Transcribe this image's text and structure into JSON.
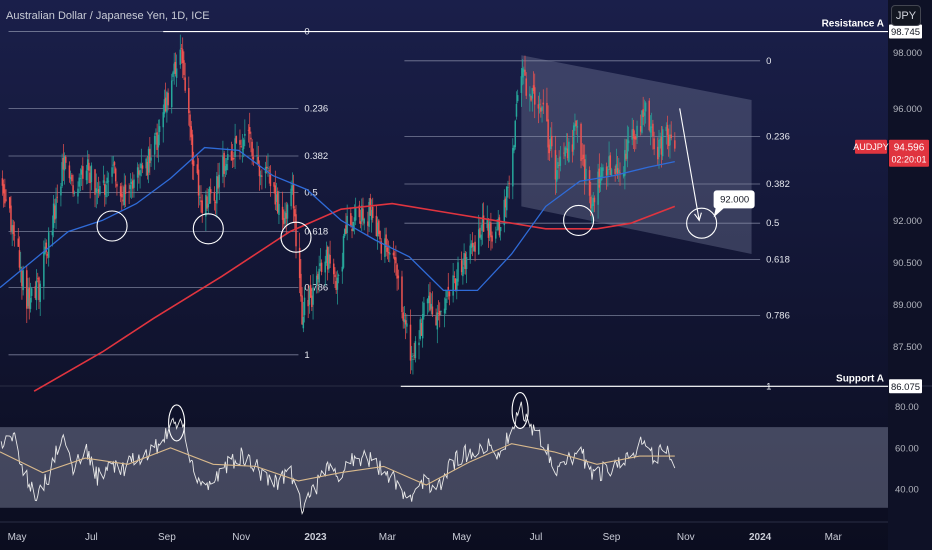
{
  "header": {
    "title": "Australian Dollar / Japanese Yen, 1D, ICE",
    "currency_button": "JPY"
  },
  "colors": {
    "background_top": "#1a1f4a",
    "background_bottom": "#0b0d1f",
    "candle_up": "#26a69a",
    "candle_down": "#ef5350",
    "ma_fast": "#2f6bd8",
    "ma_slow": "#e0343f",
    "price_tag": "#e0343f",
    "rsi_line": "#e8e8e8",
    "rsi_ma": "#d9b98c",
    "level_line": "#ffffff",
    "channel_fill": "#9aa3c0"
  },
  "chart_data": [
    {
      "type": "candlestick",
      "symbol": "AUDJPY",
      "ylim": [
        86.3,
        98.8
      ],
      "y_ticks": [
        98.0,
        96.0,
        92.0,
        90.5,
        89.0,
        87.5
      ],
      "y_tick_labels": [
        "98.000",
        "96.000",
        "92.000",
        "90.500",
        "89.000",
        "87.500"
      ],
      "x_ticks": [
        "May",
        "Jul",
        "Sep",
        "Nov",
        "2023",
        "Mar",
        "May",
        "Jul",
        "Sep",
        "Nov",
        "2024",
        "Mar"
      ],
      "x_tick_dates": [
        "2022-05-01",
        "2022-07-01",
        "2022-09-01",
        "2022-11-01",
        "2023-01-01",
        "2023-03-01",
        "2023-05-01",
        "2023-07-01",
        "2023-09-01",
        "2023-11-01",
        "2024-01-01",
        "2024-03-01"
      ],
      "x_range": [
        "2022-04-17",
        "2024-04-15"
      ],
      "last_price": {
        "symbol_label": "AUDJPY",
        "value": "94.596",
        "countdown": "02:20:01"
      },
      "close_series": [
        {
          "date": "2022-04-19",
          "close": 93.4
        },
        {
          "date": "2022-04-29",
          "close": 91.4
        },
        {
          "date": "2022-05-09",
          "close": 89.2
        },
        {
          "date": "2022-05-19",
          "close": 89.6
        },
        {
          "date": "2022-05-30",
          "close": 92.0
        },
        {
          "date": "2022-06-09",
          "close": 94.2
        },
        {
          "date": "2022-06-17",
          "close": 92.6
        },
        {
          "date": "2022-06-27",
          "close": 94.2
        },
        {
          "date": "2022-07-06",
          "close": 92.9
        },
        {
          "date": "2022-07-18",
          "close": 93.7
        },
        {
          "date": "2022-07-28",
          "close": 93.0
        },
        {
          "date": "2022-08-05",
          "close": 93.5
        },
        {
          "date": "2022-08-15",
          "close": 93.9
        },
        {
          "date": "2022-08-25",
          "close": 95.0
        },
        {
          "date": "2022-09-06",
          "close": 97.2
        },
        {
          "date": "2022-09-12",
          "close": 98.3
        },
        {
          "date": "2022-09-22",
          "close": 94.3
        },
        {
          "date": "2022-09-30",
          "close": 92.6
        },
        {
          "date": "2022-10-10",
          "close": 92.9
        },
        {
          "date": "2022-10-20",
          "close": 94.3
        },
        {
          "date": "2022-10-28",
          "close": 94.6
        },
        {
          "date": "2022-11-07",
          "close": 94.8
        },
        {
          "date": "2022-11-17",
          "close": 93.9
        },
        {
          "date": "2022-11-25",
          "close": 93.3
        },
        {
          "date": "2022-12-05",
          "close": 92.1
        },
        {
          "date": "2022-12-13",
          "close": 92.9
        },
        {
          "date": "2022-12-21",
          "close": 88.7
        },
        {
          "date": "2022-12-30",
          "close": 89.4
        },
        {
          "date": "2023-01-09",
          "close": 90.7
        },
        {
          "date": "2023-01-19",
          "close": 89.6
        },
        {
          "date": "2023-01-27",
          "close": 91.9
        },
        {
          "date": "2023-02-06",
          "close": 92.3
        },
        {
          "date": "2023-02-16",
          "close": 92.2
        },
        {
          "date": "2023-02-24",
          "close": 91.2
        },
        {
          "date": "2023-03-06",
          "close": 90.9
        },
        {
          "date": "2023-03-14",
          "close": 88.4
        },
        {
          "date": "2023-03-22",
          "close": 87.0
        },
        {
          "date": "2023-04-03",
          "close": 89.2
        },
        {
          "date": "2023-04-13",
          "close": 88.4
        },
        {
          "date": "2023-04-21",
          "close": 89.3
        },
        {
          "date": "2023-05-01",
          "close": 90.4
        },
        {
          "date": "2023-05-11",
          "close": 91.0
        },
        {
          "date": "2023-05-19",
          "close": 91.9
        },
        {
          "date": "2023-05-29",
          "close": 91.3
        },
        {
          "date": "2023-06-08",
          "close": 93.3
        },
        {
          "date": "2023-06-19",
          "close": 97.3
        },
        {
          "date": "2023-06-29",
          "close": 96.2
        },
        {
          "date": "2023-07-07",
          "close": 95.9
        },
        {
          "date": "2023-07-17",
          "close": 93.6
        },
        {
          "date": "2023-07-27",
          "close": 94.4
        },
        {
          "date": "2023-08-04",
          "close": 95.3
        },
        {
          "date": "2023-08-14",
          "close": 92.6
        },
        {
          "date": "2023-08-24",
          "close": 93.6
        },
        {
          "date": "2023-09-01",
          "close": 94.0
        },
        {
          "date": "2023-09-11",
          "close": 94.1
        },
        {
          "date": "2023-09-21",
          "close": 95.3
        },
        {
          "date": "2023-09-29",
          "close": 95.9
        },
        {
          "date": "2023-10-09",
          "close": 94.6
        },
        {
          "date": "2023-10-17",
          "close": 95.1
        },
        {
          "date": "2023-10-23",
          "close": 94.596
        }
      ],
      "ma_fast": [
        {
          "date": "2022-04-17",
          "value": 89.6
        },
        {
          "date": "2022-05-15",
          "value": 90.6
        },
        {
          "date": "2022-06-12",
          "value": 91.6
        },
        {
          "date": "2022-07-10",
          "value": 92.0
        },
        {
          "date": "2022-08-07",
          "value": 92.6
        },
        {
          "date": "2022-09-04",
          "value": 93.5
        },
        {
          "date": "2022-10-02",
          "value": 94.6
        },
        {
          "date": "2022-10-30",
          "value": 94.5
        },
        {
          "date": "2022-11-27",
          "value": 93.6
        },
        {
          "date": "2022-12-25",
          "value": 93.1
        },
        {
          "date": "2023-01-22",
          "value": 92.0
        },
        {
          "date": "2023-02-19",
          "value": 91.3
        },
        {
          "date": "2023-03-19",
          "value": 90.7
        },
        {
          "date": "2023-04-16",
          "value": 89.5
        },
        {
          "date": "2023-05-14",
          "value": 89.5
        },
        {
          "date": "2023-06-11",
          "value": 90.8
        },
        {
          "date": "2023-07-09",
          "value": 92.5
        },
        {
          "date": "2023-08-06",
          "value": 93.4
        },
        {
          "date": "2023-09-03",
          "value": 93.6
        },
        {
          "date": "2023-10-01",
          "value": 93.9
        },
        {
          "date": "2023-10-23",
          "value": 94.1
        }
      ],
      "ma_slow": [
        {
          "date": "2022-05-15",
          "value": 85.9
        },
        {
          "date": "2022-07-10",
          "value": 87.3
        },
        {
          "date": "2022-08-21",
          "value": 88.5
        },
        {
          "date": "2022-10-16",
          "value": 90.0
        },
        {
          "date": "2022-12-11",
          "value": 91.6
        },
        {
          "date": "2023-01-22",
          "value": 92.4
        },
        {
          "date": "2023-03-05",
          "value": 92.6
        },
        {
          "date": "2023-04-16",
          "value": 92.3
        },
        {
          "date": "2023-05-28",
          "value": 92.0
        },
        {
          "date": "2023-07-09",
          "value": 91.7
        },
        {
          "date": "2023-08-20",
          "value": 91.7
        },
        {
          "date": "2023-09-17",
          "value": 91.9
        },
        {
          "date": "2023-10-23",
          "value": 92.5
        }
      ],
      "levels": [
        {
          "label": "Resistance A",
          "value": 98.745,
          "tag": "98.745"
        },
        {
          "label": "Support A",
          "value": 86.075,
          "tag": "86.075"
        }
      ],
      "fib_left": {
        "from_date": "2022-04-24",
        "to_date": "2022-12-18",
        "levels": [
          {
            "ratio": "0",
            "value": 98.745
          },
          {
            "ratio": "0.236",
            "value": 96.0
          },
          {
            "ratio": "0.382",
            "value": 94.3
          },
          {
            "ratio": "0.5",
            "value": 93.0
          },
          {
            "ratio": "0.618",
            "value": 91.6
          },
          {
            "ratio": "0.786",
            "value": 89.6
          },
          {
            "ratio": "1",
            "value": 87.2
          }
        ]
      },
      "fib_right": {
        "from_date": "2023-03-15",
        "to_date": "2024-01-01",
        "levels": [
          {
            "ratio": "0",
            "value": 97.7
          },
          {
            "ratio": "0.236",
            "value": 95.0
          },
          {
            "ratio": "0.382",
            "value": 93.3
          },
          {
            "ratio": "0.5",
            "value": 91.9
          },
          {
            "ratio": "0.618",
            "value": 90.6
          },
          {
            "ratio": "0.786",
            "value": 88.6
          },
          {
            "ratio": "1",
            "value": 86.075
          }
        ]
      },
      "channel": {
        "start_date": "2023-06-19",
        "end_date": "2023-12-25",
        "top_start": 97.9,
        "top_end": 96.3,
        "bottom_start": 92.5,
        "bottom_end": 90.8
      },
      "target": {
        "label": "92.000",
        "value": 92.0,
        "date": "2023-11-14"
      },
      "arrow": {
        "from_date": "2023-10-27",
        "from_value": 96.0,
        "to_date": "2023-11-12",
        "to_value": 92.0
      },
      "circles": [
        {
          "date": "2022-07-18",
          "value": 91.8
        },
        {
          "date": "2022-10-05",
          "value": 91.7
        },
        {
          "date": "2022-12-16",
          "value": 91.4
        },
        {
          "date": "2023-08-05",
          "value": 92.0
        },
        {
          "date": "2023-11-14",
          "value": 91.9
        }
      ]
    },
    {
      "type": "line",
      "name": "RSI",
      "ylim": [
        28,
        86
      ],
      "y_ticks": [
        80.0,
        60.0,
        40.0
      ],
      "y_tick_labels": [
        "80.00",
        "60.00",
        "40.00"
      ],
      "band": [
        31,
        70
      ],
      "circles": [
        {
          "date": "2022-09-09",
          "value": 72
        },
        {
          "date": "2023-06-18",
          "value": 78
        }
      ],
      "rsi": [
        {
          "date": "2022-04-17",
          "value": 60
        },
        {
          "date": "2022-04-27",
          "value": 67
        },
        {
          "date": "2022-05-07",
          "value": 48
        },
        {
          "date": "2022-05-17",
          "value": 38
        },
        {
          "date": "2022-05-27",
          "value": 46
        },
        {
          "date": "2022-06-06",
          "value": 66
        },
        {
          "date": "2022-06-16",
          "value": 50
        },
        {
          "date": "2022-06-26",
          "value": 60
        },
        {
          "date": "2022-07-06",
          "value": 46
        },
        {
          "date": "2022-07-16",
          "value": 52
        },
        {
          "date": "2022-07-26",
          "value": 48
        },
        {
          "date": "2022-08-05",
          "value": 54
        },
        {
          "date": "2022-08-15",
          "value": 56
        },
        {
          "date": "2022-08-25",
          "value": 62
        },
        {
          "date": "2022-09-04",
          "value": 70
        },
        {
          "date": "2022-09-12",
          "value": 74
        },
        {
          "date": "2022-09-22",
          "value": 52
        },
        {
          "date": "2022-10-02",
          "value": 40
        },
        {
          "date": "2022-10-12",
          "value": 46
        },
        {
          "date": "2022-10-22",
          "value": 52
        },
        {
          "date": "2022-11-01",
          "value": 56
        },
        {
          "date": "2022-11-11",
          "value": 52
        },
        {
          "date": "2022-11-21",
          "value": 46
        },
        {
          "date": "2022-12-01",
          "value": 44
        },
        {
          "date": "2022-12-11",
          "value": 50
        },
        {
          "date": "2022-12-21",
          "value": 32
        },
        {
          "date": "2022-12-31",
          "value": 40
        },
        {
          "date": "2023-01-10",
          "value": 50
        },
        {
          "date": "2023-01-20",
          "value": 46
        },
        {
          "date": "2023-01-30",
          "value": 54
        },
        {
          "date": "2023-02-09",
          "value": 56
        },
        {
          "date": "2023-02-19",
          "value": 52
        },
        {
          "date": "2023-03-01",
          "value": 48
        },
        {
          "date": "2023-03-11",
          "value": 42
        },
        {
          "date": "2023-03-21",
          "value": 34
        },
        {
          "date": "2023-03-31",
          "value": 44
        },
        {
          "date": "2023-04-10",
          "value": 40
        },
        {
          "date": "2023-04-20",
          "value": 50
        },
        {
          "date": "2023-04-30",
          "value": 56
        },
        {
          "date": "2023-05-10",
          "value": 58
        },
        {
          "date": "2023-05-20",
          "value": 62
        },
        {
          "date": "2023-05-30",
          "value": 56
        },
        {
          "date": "2023-06-09",
          "value": 66
        },
        {
          "date": "2023-06-18",
          "value": 80
        },
        {
          "date": "2023-06-28",
          "value": 70
        },
        {
          "date": "2023-07-08",
          "value": 62
        },
        {
          "date": "2023-07-18",
          "value": 50
        },
        {
          "date": "2023-07-28",
          "value": 54
        },
        {
          "date": "2023-08-07",
          "value": 58
        },
        {
          "date": "2023-08-17",
          "value": 46
        },
        {
          "date": "2023-08-27",
          "value": 50
        },
        {
          "date": "2023-09-06",
          "value": 52
        },
        {
          "date": "2023-09-16",
          "value": 58
        },
        {
          "date": "2023-09-26",
          "value": 62
        },
        {
          "date": "2023-10-06",
          "value": 54
        },
        {
          "date": "2023-10-16",
          "value": 60
        },
        {
          "date": "2023-10-23",
          "value": 50
        }
      ],
      "rsi_ma": [
        {
          "date": "2022-04-17",
          "value": 58
        },
        {
          "date": "2022-05-22",
          "value": 48
        },
        {
          "date": "2022-06-26",
          "value": 55
        },
        {
          "date": "2022-07-31",
          "value": 52
        },
        {
          "date": "2022-09-04",
          "value": 60
        },
        {
          "date": "2022-10-09",
          "value": 52
        },
        {
          "date": "2022-11-13",
          "value": 51
        },
        {
          "date": "2022-12-18",
          "value": 44
        },
        {
          "date": "2023-01-22",
          "value": 48
        },
        {
          "date": "2023-02-26",
          "value": 51
        },
        {
          "date": "2023-04-02",
          "value": 42
        },
        {
          "date": "2023-05-07",
          "value": 53
        },
        {
          "date": "2023-06-11",
          "value": 62
        },
        {
          "date": "2023-07-16",
          "value": 58
        },
        {
          "date": "2023-08-20",
          "value": 52
        },
        {
          "date": "2023-09-24",
          "value": 56
        },
        {
          "date": "2023-10-23",
          "value": 56
        }
      ]
    }
  ]
}
